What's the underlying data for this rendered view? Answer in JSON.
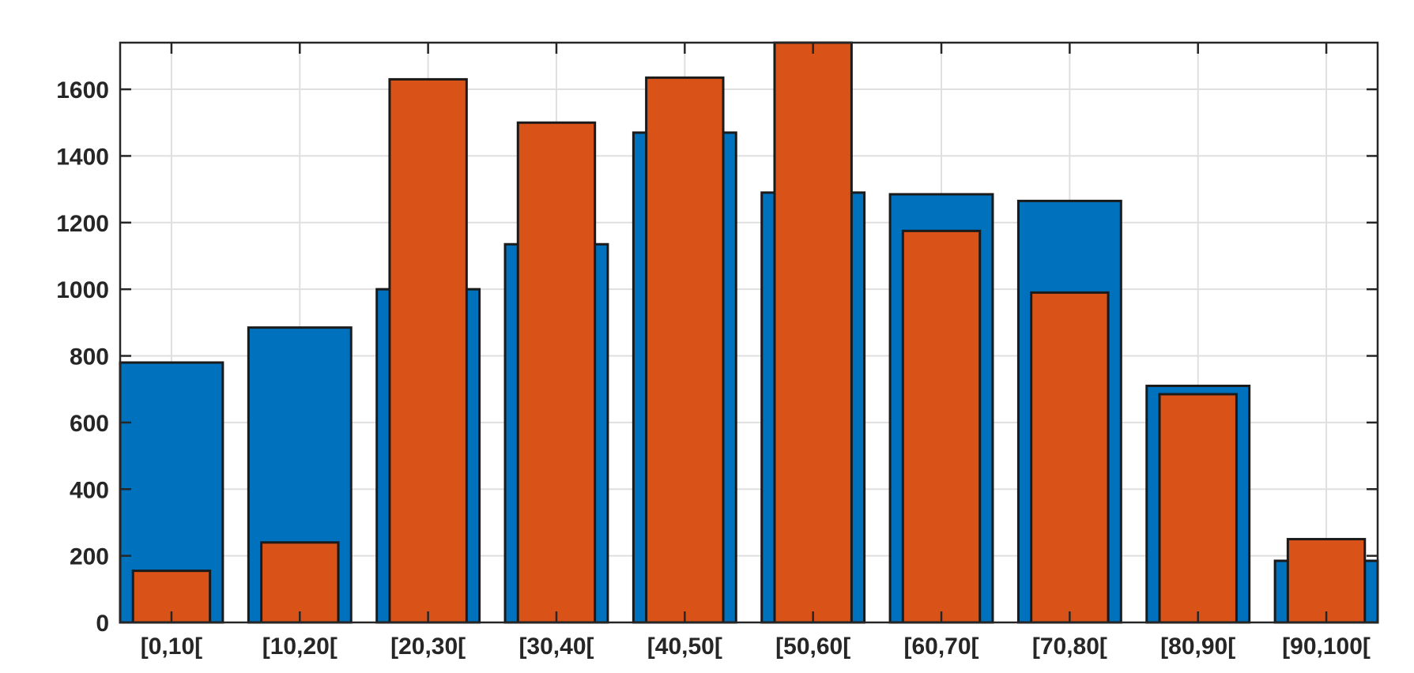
{
  "chart_data": {
    "type": "bar",
    "categories": [
      "[0,10[",
      "[10,20[",
      "[20,30[",
      "[30,40[",
      "[40,50[",
      "[50,60[",
      "[60,70[",
      "[70,80[",
      "[80,90[",
      "[90,100["
    ],
    "series": [
      {
        "values": [
          780,
          885,
          1000,
          1135,
          1470,
          1290,
          1285,
          1265,
          710,
          185
        ],
        "color": "#0072BD"
      },
      {
        "values": [
          155,
          240,
          1630,
          1500,
          1635,
          1740,
          1175,
          990,
          685,
          250
        ],
        "color": "#D95319"
      }
    ],
    "yticks": [
      0,
      200,
      400,
      600,
      800,
      1000,
      1200,
      1400,
      1600
    ],
    "ylim": [
      0,
      1740
    ],
    "xlim": [
      0.6,
      10.4
    ],
    "grid": true
  }
}
